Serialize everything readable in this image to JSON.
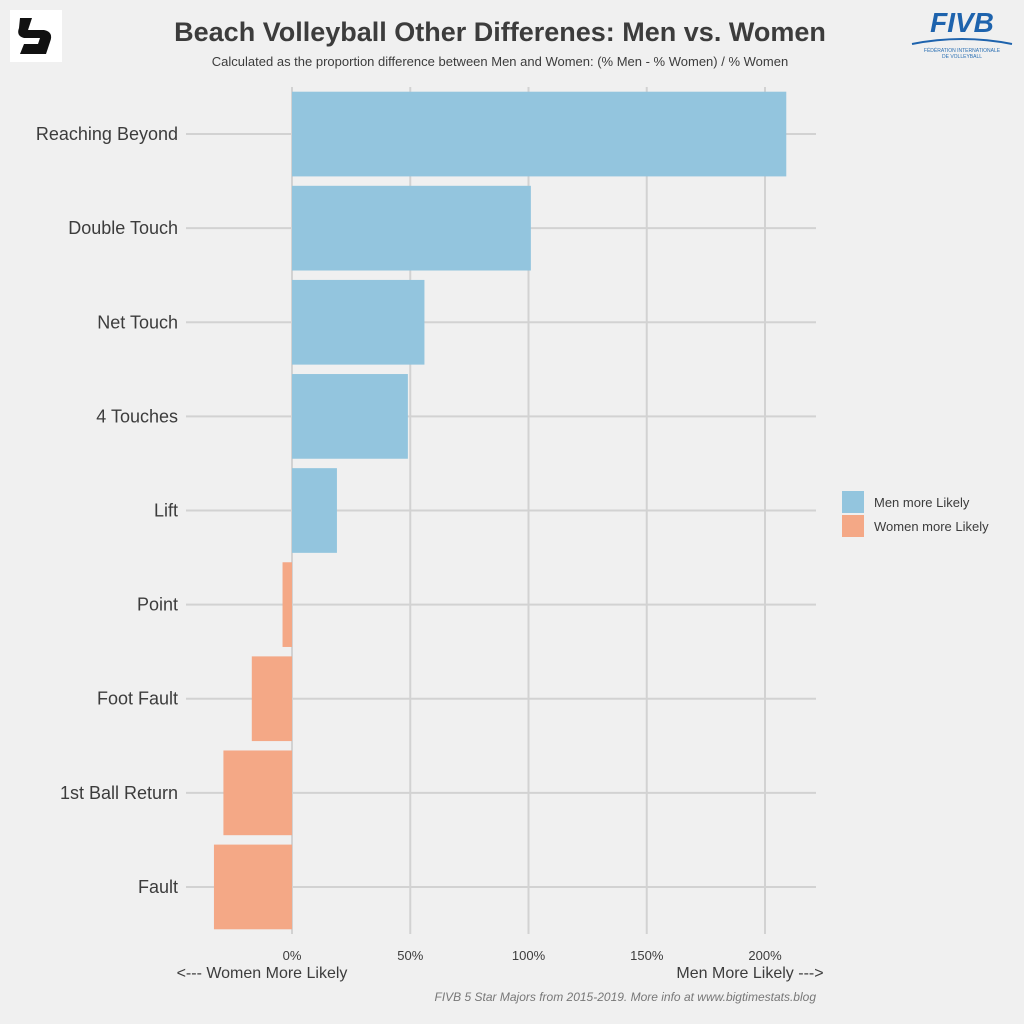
{
  "chart_data": {
    "type": "bar",
    "orientation": "horizontal",
    "title": "Beach Volleyball Other Differenes: Men vs. Women",
    "subtitle": "Calculated as the proportion difference between Men and Women: (% Men - % Women) / % Women",
    "categories": [
      "Reaching Beyond",
      "Double Touch",
      "Net Touch",
      "4 Touches",
      "Lift",
      "Point",
      "Foot Fault",
      "1st Ball Return",
      "Fault"
    ],
    "values": [
      209,
      101,
      56,
      49,
      19,
      -4,
      -17,
      -29,
      -33
    ],
    "xlim": [
      -45,
      222
    ],
    "x_ticks": [
      0,
      50,
      100,
      150,
      200
    ],
    "x_tick_labels": [
      "0%",
      "50%",
      "100%",
      "150%",
      "200%"
    ],
    "x_left_label": "<--- Women More Likely",
    "x_right_label": "Men More Likely --->",
    "grid": true,
    "legend": {
      "position": "right",
      "entries": [
        {
          "name": "Men more Likely",
          "color": "#93c5de"
        },
        {
          "name": "Women more Likely",
          "color": "#f4a886"
        }
      ]
    },
    "colors": {
      "positive": "#93c5de",
      "negative": "#f4a886"
    },
    "caption": "FIVB 5 Star Majors from 2015-2019. More info at www.bigtimestats.blog"
  },
  "logos": {
    "left": "bigtimestats-logo",
    "right": {
      "name": "fivb-logo",
      "text": "FIVB",
      "subtitle_line1": "FÉDÉRATION INTERNATIONALE",
      "subtitle_line2": "DE VOLLEYBALL"
    }
  }
}
